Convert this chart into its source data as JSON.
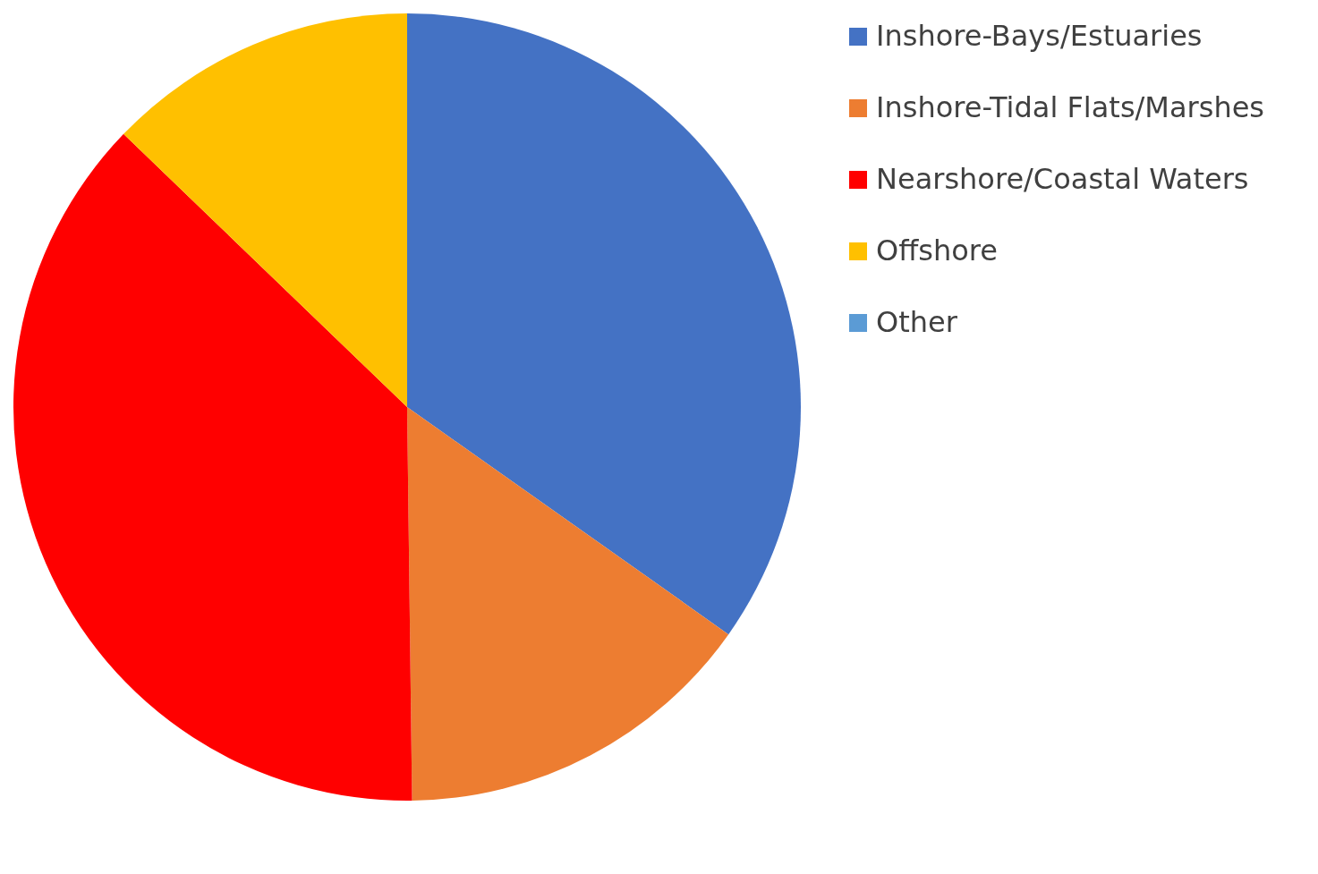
{
  "chart_data": {
    "type": "pie",
    "categories": [
      "Inshore-Bays/Estuaries",
      "Inshore-Tidal Flats/Marshes",
      "Nearshore/Coastal Waters",
      "Offshore",
      "Other"
    ],
    "values": [
      34.8,
      15.0,
      37.4,
      12.8,
      0
    ],
    "colors": [
      "#4472c4",
      "#ed7d31",
      "#ff0000",
      "#ffc000",
      "#5b9bd5"
    ],
    "legend": "right"
  }
}
